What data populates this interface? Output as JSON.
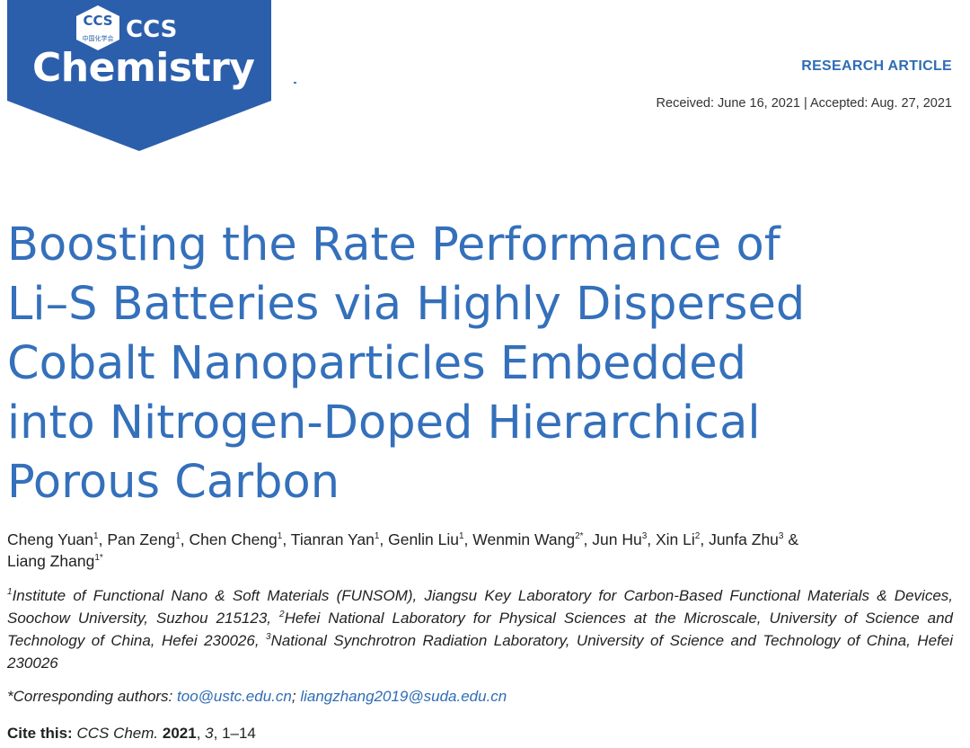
{
  "logo": {
    "badge": "CCS",
    "badge_sub": "中国化学会",
    "top": "CCS",
    "name": "Chemistry"
  },
  "header": {
    "article_type": "RESEARCH ARTICLE",
    "dates": "Received: June 16, 2021 | Accepted: Aug. 27, 2021"
  },
  "title": {
    "lines": [
      "Boosting the Rate Performance of",
      "Li–S Batteries via Highly Dispersed",
      "Cobalt Nanoparticles Embedded",
      "into Nitrogen-Doped Hierarchical",
      "Porous Carbon"
    ]
  },
  "authors": [
    {
      "name": "Cheng Yuan",
      "sup": "1",
      "sep": ", "
    },
    {
      "name": "Pan Zeng",
      "sup": "1",
      "sep": ", "
    },
    {
      "name": "Chen Cheng",
      "sup": "1",
      "sep": ", "
    },
    {
      "name": "Tianran Yan",
      "sup": "1",
      "sep": ", "
    },
    {
      "name": "Genlin Liu",
      "sup": "1",
      "sep": ", "
    },
    {
      "name": "Wenmin Wang",
      "sup": "2*",
      "sep": ", "
    },
    {
      "name": "Jun Hu",
      "sup": "3",
      "sep": ", "
    },
    {
      "name": "Xin Li",
      "sup": "2",
      "sep": ", "
    },
    {
      "name": "Junfa Zhu",
      "sup": "3",
      "sep": " & "
    },
    {
      "name": "Liang Zhang",
      "sup": "1*"
    }
  ],
  "affiliations": [
    {
      "sup": "1",
      "text": "Institute of Functional Nano & Soft Materials (FUNSOM), Jiangsu Key Laboratory for Carbon-Based Functional Materials & Devices, Soochow University, Suzhou 215123, "
    },
    {
      "sup": "2",
      "text": "Hefei National Laboratory for Physical Sciences at the Microscale, University of Science and Technology of China, Hefei 230026, "
    },
    {
      "sup": "3",
      "text": "National Synchrotron Radiation Laboratory, University of Science and Technology of China, Hefei 230026"
    }
  ],
  "correspondence": {
    "label": "*Corresponding authors: ",
    "emails": [
      "too@ustc.edu.cn",
      "liangzhang2019@suda.edu.cn"
    ],
    "separator": "; "
  },
  "citation": {
    "parts": [
      {
        "text": "Cite this: ",
        "style": "bold"
      },
      {
        "text": "CCS Chem.",
        "style": "italic"
      },
      {
        "text": " ",
        "style": "normal"
      },
      {
        "text": "2021",
        "style": "bold"
      },
      {
        "text": ", ",
        "style": "normal"
      },
      {
        "text": "3",
        "style": "italic"
      },
      {
        "text": ", 1–14",
        "style": "normal"
      }
    ]
  }
}
